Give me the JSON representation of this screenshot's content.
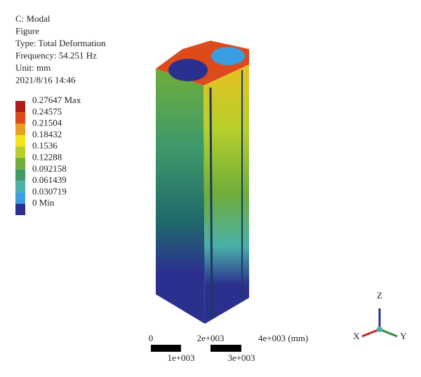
{
  "header": {
    "lines": [
      "C: Modal",
      "Figure",
      "Type: Total Deformation",
      "Frequency: 54.251 Hz",
      "Unit: mm",
      "2021/8/16 14:46"
    ]
  },
  "legend": {
    "labels": [
      "0.27647 Max",
      "0.24575",
      "0.21504",
      "0.18432",
      "0.1536",
      "0.12288",
      "0.092158",
      "0.061439",
      "0.030719",
      "0 Min"
    ],
    "colors": [
      "#b01c16",
      "#dd4a1c",
      "#e9a022",
      "#f4e21e",
      "#b6cf2c",
      "#6fad3a",
      "#3f9a6a",
      "#4bb0a8",
      "#3a9ee0",
      "#2b308f"
    ]
  },
  "scale": {
    "labels": [
      "0",
      "2e+003",
      "4e+003 (mm)",
      "1e+003",
      "3e+003"
    ]
  },
  "axes": {
    "z": "Z",
    "x": "X",
    "y": "Y"
  }
}
